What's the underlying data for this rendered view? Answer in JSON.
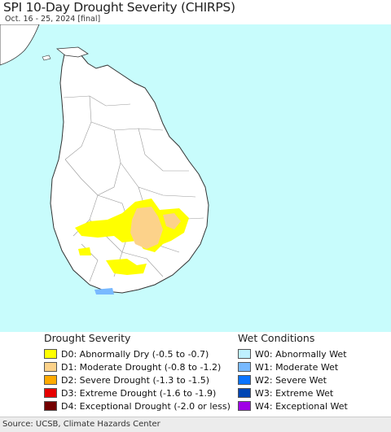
{
  "header": {
    "title": "SPI 10-Day Drought Severity (CHIRPS)",
    "subtitle": "Oct. 16 - 25, 2024 [final]"
  },
  "map": {
    "sea_color": "#c8fcfc",
    "land_color": "#ffffff"
  },
  "legend": {
    "drought": {
      "heading": "Drought Severity",
      "items": [
        {
          "label": "D0: Abnormally Dry (-0.5 to -0.7)",
          "color": "#ffff00"
        },
        {
          "label": "D1: Moderate Drought (-0.8 to -1.2)",
          "color": "#fcd28a"
        },
        {
          "label": "D2: Severe Drought (-1.3 to -1.5)",
          "color": "#ffaa00"
        },
        {
          "label": "D3: Extreme Drought (-1.6 to -1.9)",
          "color": "#e60000"
        },
        {
          "label": "D4: Exceptional Drought (-2.0 or less)",
          "color": "#730000"
        }
      ]
    },
    "wet": {
      "heading": "Wet Conditions",
      "items": [
        {
          "label": "W0: Abnormally Wet",
          "color": "#bef0ff"
        },
        {
          "label": "W1: Moderate Wet",
          "color": "#78b9ff"
        },
        {
          "label": "W2: Severe Wet",
          "color": "#0a73ff"
        },
        {
          "label": "W3: Extreme Wet",
          "color": "#0046b4"
        },
        {
          "label": "W4: Exceptional Wet",
          "color": "#a000e6"
        }
      ]
    }
  },
  "footer": {
    "source": "Source: UCSB, Climate Hazards Center"
  }
}
